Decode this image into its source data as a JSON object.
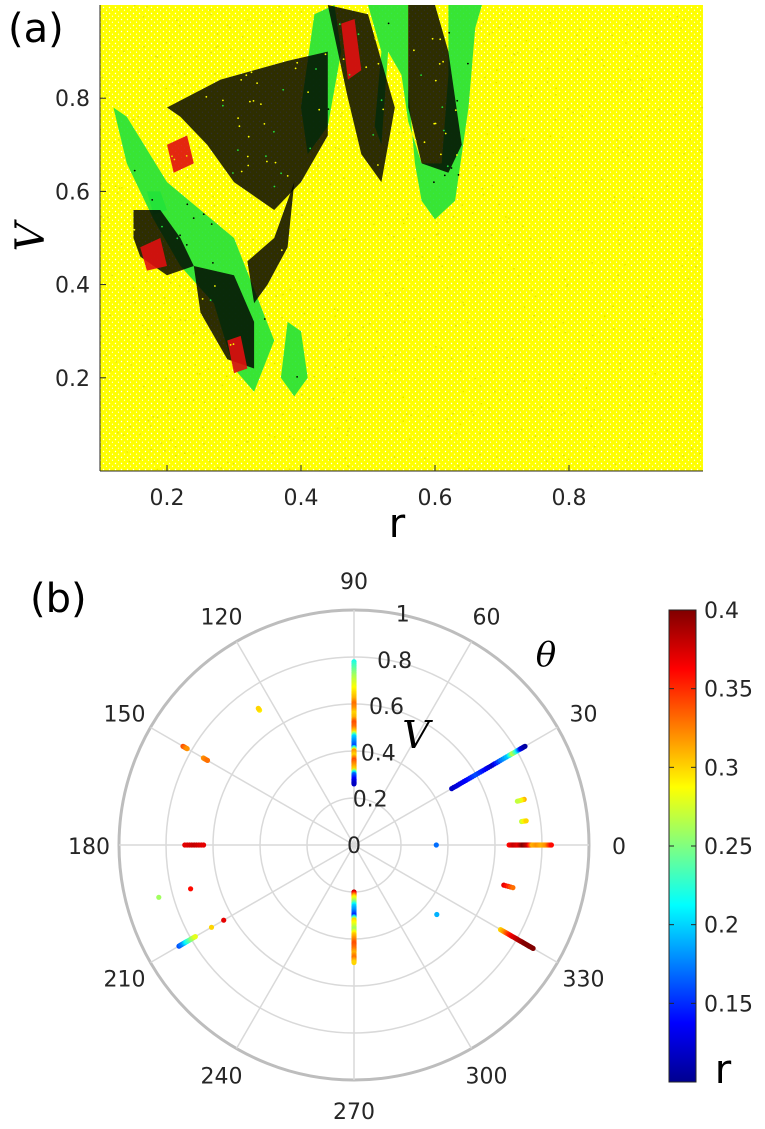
{
  "panel_a": {
    "label": "(a)",
    "xlabel": "r",
    "ylabel": "V",
    "xticks": [
      "0.2",
      "0.4",
      "0.6",
      "0.8"
    ],
    "yticks": [
      "0.2",
      "0.4",
      "0.6",
      "0.8"
    ]
  },
  "panel_b": {
    "label": "(b)",
    "theta_label": "θ",
    "v_label": "V",
    "angle_labels": [
      "0",
      "30",
      "60",
      "90",
      "120",
      "150",
      "180",
      "210",
      "240",
      "270",
      "300",
      "330"
    ],
    "radius_labels": [
      "0.2",
      "0.4",
      "0.6",
      "0.8",
      "1"
    ],
    "center_label": "0",
    "colorbar": {
      "label": "r",
      "ticks": [
        "0.4",
        "0.35",
        "0.3",
        "0.25",
        "0.2",
        "0.15"
      ],
      "range": [
        0.1,
        0.4
      ],
      "colormap": "jet"
    }
  },
  "colors": {
    "yellow": "#ffff00",
    "green": "#22e23a",
    "black": "#000000",
    "red": "#e01010",
    "grid": "#d9d9d9",
    "outer_ring": "#bdbdbd"
  },
  "chart_data": [
    {
      "type": "scatter",
      "xlim": [
        0.1,
        1.0
      ],
      "ylim": [
        0.0,
        1.0
      ],
      "grid": false,
      "series": [
        {
          "color": "black",
          "regions": [
            {
              "polygon": [
                [
                  0.44,
                  1.0
                ],
                [
                  0.5,
                  0.98
                ],
                [
                  0.54,
                  0.78
                ],
                [
                  0.52,
                  0.62
                ],
                [
                  0.49,
                  0.68
                ],
                [
                  0.47,
                  0.8
                ]
              ]
            },
            {
              "polygon": [
                [
                  0.56,
                  1.0
                ],
                [
                  0.6,
                  1.0
                ],
                [
                  0.62,
                  0.9
                ],
                [
                  0.64,
                  0.7
                ],
                [
                  0.62,
                  0.64
                ],
                [
                  0.58,
                  0.66
                ],
                [
                  0.56,
                  0.78
                ]
              ]
            },
            {
              "polygon": [
                [
                  0.2,
                  0.78
                ],
                [
                  0.28,
                  0.84
                ],
                [
                  0.38,
                  0.88
                ],
                [
                  0.44,
                  0.9
                ],
                [
                  0.44,
                  0.72
                ],
                [
                  0.4,
                  0.62
                ],
                [
                  0.36,
                  0.56
                ],
                [
                  0.3,
                  0.62
                ],
                [
                  0.26,
                  0.7
                ],
                [
                  0.22,
                  0.76
                ]
              ]
            },
            {
              "polygon": [
                [
                  0.15,
                  0.56
                ],
                [
                  0.19,
                  0.56
                ],
                [
                  0.22,
                  0.5
                ],
                [
                  0.24,
                  0.44
                ],
                [
                  0.2,
                  0.42
                ],
                [
                  0.16,
                  0.46
                ],
                [
                  0.15,
                  0.5
                ]
              ]
            },
            {
              "polygon": [
                [
                  0.24,
                  0.44
                ],
                [
                  0.3,
                  0.42
                ],
                [
                  0.33,
                  0.32
                ],
                [
                  0.33,
                  0.22
                ],
                [
                  0.29,
                  0.24
                ],
                [
                  0.25,
                  0.34
                ]
              ]
            },
            {
              "polygon": [
                [
                  0.32,
                  0.45
                ],
                [
                  0.36,
                  0.5
                ],
                [
                  0.39,
                  0.62
                ],
                [
                  0.38,
                  0.48
                ],
                [
                  0.35,
                  0.4
                ],
                [
                  0.33,
                  0.36
                ]
              ]
            }
          ]
        },
        {
          "color": "green",
          "regions": [
            {
              "polygon": [
                [
                  0.5,
                  1.0
                ],
                [
                  0.56,
                  1.0
                ],
                [
                  0.56,
                  0.82
                ],
                [
                  0.57,
                  0.66
                ],
                [
                  0.58,
                  0.58
                ],
                [
                  0.6,
                  0.54
                ],
                [
                  0.63,
                  0.58
                ],
                [
                  0.65,
                  0.78
                ],
                [
                  0.66,
                  0.95
                ],
                [
                  0.67,
                  1.0
                ],
                [
                  0.62,
                  1.0
                ],
                [
                  0.62,
                  0.85
                ],
                [
                  0.61,
                  0.66
                ],
                [
                  0.58,
                  0.66
                ],
                [
                  0.56,
                  0.75
                ],
                [
                  0.55,
                  0.85
                ],
                [
                  0.53,
                  0.9
                ],
                [
                  0.52,
                  0.7
                ],
                [
                  0.51,
                  0.74
                ],
                [
                  0.52,
                  0.9
                ]
              ]
            },
            {
              "polygon": [
                [
                  0.42,
                  0.98
                ],
                [
                  0.45,
                  1.0
                ],
                [
                  0.46,
                  0.9
                ],
                [
                  0.44,
                  0.74
                ],
                [
                  0.41,
                  0.68
                ],
                [
                  0.4,
                  0.78
                ]
              ]
            },
            {
              "polygon": [
                [
                  0.12,
                  0.78
                ],
                [
                  0.14,
                  0.76
                ],
                [
                  0.2,
                  0.62
                ],
                [
                  0.3,
                  0.5
                ],
                [
                  0.36,
                  0.28
                ],
                [
                  0.33,
                  0.17
                ],
                [
                  0.3,
                  0.22
                ],
                [
                  0.27,
                  0.36
                ],
                [
                  0.22,
                  0.44
                ],
                [
                  0.18,
                  0.54
                ],
                [
                  0.14,
                  0.66
                ]
              ]
            },
            {
              "polygon": [
                [
                  0.17,
                  0.6
                ],
                [
                  0.19,
                  0.6
                ],
                [
                  0.2,
                  0.56
                ],
                [
                  0.18,
                  0.55
                ]
              ]
            },
            {
              "polygon": [
                [
                  0.38,
                  0.32
                ],
                [
                  0.4,
                  0.3
                ],
                [
                  0.41,
                  0.2
                ],
                [
                  0.39,
                  0.16
                ],
                [
                  0.37,
                  0.2
                ]
              ]
            }
          ]
        },
        {
          "color": "red",
          "regions": [
            {
              "polygon": [
                [
                  0.46,
                  0.96
                ],
                [
                  0.48,
                  0.97
                ],
                [
                  0.49,
                  0.86
                ],
                [
                  0.47,
                  0.84
                ]
              ]
            },
            {
              "polygon": [
                [
                  0.2,
                  0.7
                ],
                [
                  0.23,
                  0.72
                ],
                [
                  0.24,
                  0.66
                ],
                [
                  0.21,
                  0.64
                ]
              ]
            },
            {
              "polygon": [
                [
                  0.16,
                  0.48
                ],
                [
                  0.19,
                  0.5
                ],
                [
                  0.2,
                  0.44
                ],
                [
                  0.17,
                  0.43
                ]
              ]
            },
            {
              "polygon": [
                [
                  0.29,
                  0.28
                ],
                [
                  0.31,
                  0.29
                ],
                [
                  0.32,
                  0.22
                ],
                [
                  0.3,
                  0.21
                ]
              ]
            }
          ]
        },
        {
          "color": "yellow",
          "regions": [
            {
              "note_region": "background",
              "polygon": [
                [
                  0.1,
                  0.0
                ],
                [
                  1.0,
                  0.0
                ],
                [
                  1.0,
                  1.0
                ],
                [
                  0.1,
                  1.0
                ]
              ]
            }
          ]
        }
      ]
    },
    {
      "type": "scatter",
      "coordinate_system": "polar",
      "theta_unit": "degrees",
      "rlim": [
        0,
        1
      ],
      "color_by": "r",
      "color_range": [
        0.1,
        0.4
      ],
      "series": [
        {
          "theta": 90,
          "points": [
            [
              0.78,
              0.22
            ],
            [
              0.75,
              0.24
            ],
            [
              0.72,
              0.26
            ],
            [
              0.7,
              0.27
            ],
            [
              0.68,
              0.28
            ],
            [
              0.66,
              0.29
            ],
            [
              0.64,
              0.3
            ],
            [
              0.62,
              0.31
            ],
            [
              0.6,
              0.33
            ],
            [
              0.58,
              0.32
            ],
            [
              0.56,
              0.3
            ],
            [
              0.54,
              0.31
            ],
            [
              0.52,
              0.34
            ],
            [
              0.5,
              0.33
            ],
            [
              0.48,
              0.3
            ],
            [
              0.46,
              0.2
            ],
            [
              0.44,
              0.18
            ],
            [
              0.42,
              0.16
            ],
            [
              0.4,
              0.32
            ],
            [
              0.38,
              0.3
            ],
            [
              0.36,
              0.34
            ],
            [
              0.34,
              0.32
            ],
            [
              0.32,
              0.3
            ],
            [
              0.3,
              0.17
            ],
            [
              0.28,
              0.14
            ],
            [
              0.27,
              0.13
            ],
            [
              0.26,
              0.12
            ]
          ]
        },
        {
          "theta": 270,
          "points": [
            [
              0.2,
              0.38
            ],
            [
              0.22,
              0.3
            ],
            [
              0.24,
              0.26
            ],
            [
              0.26,
              0.2
            ],
            [
              0.28,
              0.18
            ],
            [
              0.3,
              0.15
            ],
            [
              0.32,
              0.3
            ],
            [
              0.34,
              0.28
            ],
            [
              0.36,
              0.26
            ],
            [
              0.38,
              0.3
            ],
            [
              0.4,
              0.32
            ],
            [
              0.42,
              0.34
            ],
            [
              0.44,
              0.33
            ],
            [
              0.46,
              0.31
            ],
            [
              0.48,
              0.33
            ],
            [
              0.5,
              0.3
            ]
          ]
        },
        {
          "theta": 30,
          "points": [
            [
              0.48,
              0.12
            ],
            [
              0.52,
              0.13
            ],
            [
              0.56,
              0.14
            ],
            [
              0.6,
              0.16
            ],
            [
              0.64,
              0.14
            ],
            [
              0.68,
              0.12
            ],
            [
              0.72,
              0.17
            ],
            [
              0.76,
              0.2
            ],
            [
              0.78,
              0.27
            ],
            [
              0.8,
              0.22
            ],
            [
              0.82,
              0.13
            ],
            [
              0.84,
              0.11
            ]
          ]
        },
        {
          "theta": 0,
          "points": [
            [
              0.35,
              0.17
            ],
            [
              0.66,
              0.36
            ],
            [
              0.68,
              0.38
            ],
            [
              0.7,
              0.37
            ],
            [
              0.72,
              0.4
            ],
            [
              0.74,
              0.38
            ],
            [
              0.76,
              0.31
            ],
            [
              0.78,
              0.32
            ],
            [
              0.8,
              0.31
            ],
            [
              0.82,
              0.32
            ],
            [
              0.84,
              0.36
            ]
          ]
        },
        {
          "theta": 330,
          "points": [
            [
              0.72,
              0.3
            ],
            [
              0.74,
              0.32
            ],
            [
              0.76,
              0.35
            ],
            [
              0.78,
              0.37
            ],
            [
              0.8,
              0.38
            ],
            [
              0.82,
              0.39
            ],
            [
              0.84,
              0.4
            ],
            [
              0.86,
              0.4
            ],
            [
              0.88,
              0.4
            ]
          ]
        },
        {
          "theta": 180,
          "points": [
            [
              0.72,
              0.37
            ],
            [
              0.68,
              0.38
            ],
            [
              0.64,
              0.37
            ]
          ]
        },
        {
          "theta": 210,
          "points": [
            [
              0.86,
              0.16
            ],
            [
              0.84,
              0.18
            ],
            [
              0.82,
              0.22
            ],
            [
              0.8,
              0.25
            ],
            [
              0.78,
              0.28
            ],
            [
              0.7,
              0.3
            ],
            [
              0.64,
              0.37
            ]
          ]
        },
        {
          "theta": 150,
          "points": [
            [
              0.84,
              0.34
            ],
            [
              0.82,
              0.32
            ],
            [
              0.74,
              0.32
            ],
            [
              0.72,
              0.33
            ]
          ]
        },
        {
          "theta": 125,
          "points": [
            [
              0.7,
              0.29
            ],
            [
              0.71,
              0.3
            ]
          ]
        },
        {
          "theta": 15,
          "points": [
            [
              0.75,
              0.31
            ],
            [
              0.72,
              0.27
            ]
          ]
        },
        {
          "theta": 8,
          "points": [
            [
              0.72,
              0.27
            ],
            [
              0.74,
              0.3
            ]
          ]
        },
        {
          "theta": 345,
          "points": [
            [
              0.66,
              0.37
            ],
            [
              0.7,
              0.33
            ]
          ]
        },
        {
          "theta": 195,
          "points": [
            [
              0.86,
              0.26
            ],
            [
              0.72,
              0.36
            ]
          ]
        },
        {
          "theta": 320,
          "points": [
            [
              0.46,
              0.19
            ]
          ]
        }
      ]
    }
  ]
}
